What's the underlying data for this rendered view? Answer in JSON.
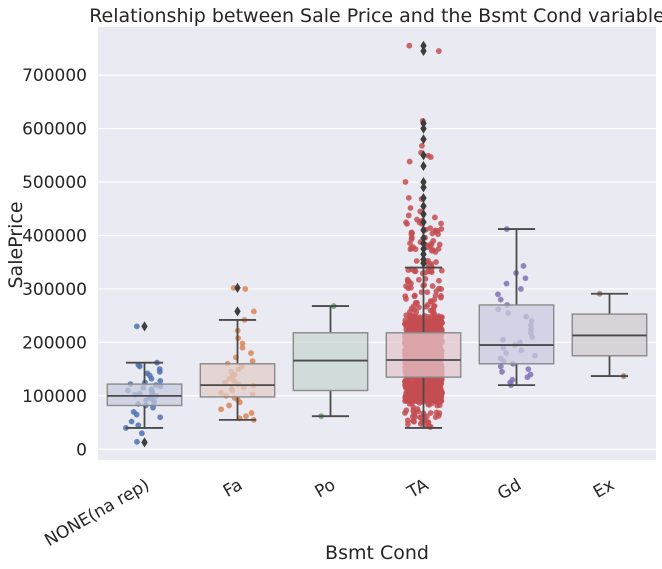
{
  "chart_data": {
    "type": "box",
    "title": "Relationship between Sale Price and the Bsmt Cond variable",
    "xlabel": "Bsmt Cond",
    "ylabel": "SalePrice",
    "ylim": [
      -20000,
      790000
    ],
    "yticks": [
      0,
      100000,
      200000,
      300000,
      400000,
      500000,
      600000,
      700000
    ],
    "ytick_labels": [
      "0",
      "100000",
      "200000",
      "300000",
      "400000",
      "500000",
      "600000",
      "700000"
    ],
    "grid": true,
    "categories": [
      "NONE(na rep)",
      "Fa",
      "Po",
      "TA",
      "Gd",
      "Ex"
    ],
    "colors": [
      "#4c72b0",
      "#dd8452",
      "#55a868",
      "#c44e52",
      "#8172b3",
      "#937860"
    ],
    "box_colors": [
      "#c6cbdc",
      "#e2cdc7",
      "#c7d7d0",
      "#e2c6cb",
      "#cccbdf",
      "#d0cbcd"
    ],
    "boxes": [
      {
        "category": "NONE(na rep)",
        "whisker_low": 40000,
        "q1": 82000,
        "median": 100000,
        "q3": 122000,
        "whisker_high": 162000,
        "outliers": [
          230000,
          13000
        ]
      },
      {
        "category": "Fa",
        "whisker_low": 55000,
        "q1": 98000,
        "median": 120000,
        "q3": 160000,
        "whisker_high": 242000,
        "outliers": [
          258000,
          302000
        ]
      },
      {
        "category": "Po",
        "whisker_low": 62000,
        "q1": 110000,
        "median": 166000,
        "q3": 218000,
        "whisker_high": 268000,
        "outliers": []
      },
      {
        "category": "TA",
        "whisker_low": 40000,
        "q1": 135000,
        "median": 167000,
        "q3": 218000,
        "whisker_high": 340000,
        "outliers": [
          745000,
          755000,
          600000,
          610000,
          580000,
          550000,
          530000,
          500000,
          490000,
          470000,
          455000,
          440000,
          425000,
          410000,
          395000,
          385000,
          375000,
          365000,
          355000,
          348000
        ]
      },
      {
        "category": "Gd",
        "whisker_low": 120000,
        "q1": 160000,
        "median": 195000,
        "q3": 270000,
        "whisker_high": 412000,
        "outliers": []
      },
      {
        "category": "Ex",
        "whisker_low": 137000,
        "q1": 175000,
        "median": 213000,
        "q3": 253000,
        "whisker_high": 291000,
        "outliers": []
      }
    ],
    "strip_points": [
      {
        "category": "NONE(na rep)",
        "values": [
          40000,
          60000,
          65000,
          70000,
          78000,
          82000,
          85000,
          88000,
          90000,
          92000,
          95000,
          97000,
          100000,
          102000,
          104000,
          106000,
          108000,
          110000,
          112000,
          115000,
          118000,
          120000,
          122000,
          125000,
          128000,
          132000,
          138000,
          142000,
          145000,
          150000,
          155000,
          158000,
          162000,
          45000,
          52000,
          14000,
          30000,
          230000
        ]
      },
      {
        "category": "Fa",
        "values": [
          55000,
          58000,
          62000,
          68000,
          75000,
          82000,
          88000,
          92000,
          96000,
          100000,
          103000,
          106000,
          110000,
          113000,
          116000,
          119000,
          122000,
          125000,
          128000,
          132000,
          136000,
          140000,
          145000,
          150000,
          155000,
          160000,
          165000,
          172000,
          180000,
          190000,
          198000,
          208000,
          222000,
          242000,
          258000,
          302000,
          300000
        ]
      },
      {
        "category": "Po",
        "values": [
          62000,
          268000
        ]
      },
      {
        "category": "Gd",
        "values": [
          120000,
          125000,
          130000,
          135000,
          140000,
          145000,
          150000,
          155000,
          160000,
          165000,
          170000,
          175000,
          180000,
          185000,
          190000,
          195000,
          200000,
          205000,
          210000,
          218000,
          225000,
          232000,
          240000,
          248000,
          255000,
          262000,
          270000,
          280000,
          290000,
          300000,
          310000,
          320000,
          330000,
          343000,
          412000
        ]
      },
      {
        "category": "Ex",
        "values": [
          137000,
          291000
        ]
      }
    ],
    "strip_dense": {
      "category": "TA",
      "count": 1200,
      "min": 40000,
      "max": 755000
    }
  }
}
